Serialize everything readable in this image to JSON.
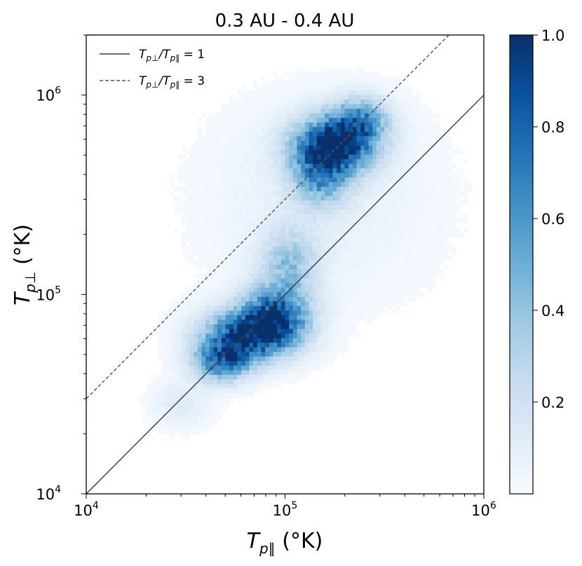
{
  "chart_data": {
    "type": "heatmap",
    "title": "0.3 AU - 0.4 AU",
    "xlabel": "T_p∥ (°K)",
    "ylabel": "T_p⊥ (°K)",
    "x_scale": "log",
    "y_scale": "log",
    "xlim": [
      10000,
      1000000
    ],
    "ylim": [
      10000,
      2000000
    ],
    "x_ticks": [
      {
        "value": 10000,
        "base": "10",
        "exp": "4"
      },
      {
        "value": 100000,
        "base": "10",
        "exp": "5"
      },
      {
        "value": 1000000,
        "base": "10",
        "exp": "6"
      }
    ],
    "y_ticks": [
      {
        "value": 10000,
        "base": "10",
        "exp": "4"
      },
      {
        "value": 100000,
        "base": "10",
        "exp": "5"
      },
      {
        "value": 1000000,
        "base": "10",
        "exp": "6"
      }
    ],
    "colormap": "Blues",
    "color_low": "#f7fbff",
    "color_high": "#08306b",
    "colorbar": {
      "min": 0.0,
      "max": 1.0,
      "ticks": [
        {
          "value": 0.2,
          "label": "0.2"
        },
        {
          "value": 0.4,
          "label": "0.4"
        },
        {
          "value": 0.6,
          "label": "0.6"
        },
        {
          "value": 0.8,
          "label": "0.8"
        },
        {
          "value": 1.0,
          "label": "1.0"
        }
      ]
    },
    "density_clusters": [
      {
        "center": [
          65000,
          62000
        ],
        "spread": [
          0.16,
          0.09
        ],
        "peak": 0.85
      },
      {
        "center": [
          90000,
          80000
        ],
        "spread": [
          0.12,
          0.1
        ],
        "peak": 0.7
      },
      {
        "center": [
          48000,
          46000
        ],
        "spread": [
          0.1,
          0.07
        ],
        "peak": 0.65
      },
      {
        "center": [
          105000,
          145000
        ],
        "spread": [
          0.1,
          0.12
        ],
        "peak": 0.35
      },
      {
        "center": [
          175000,
          560000
        ],
        "spread": [
          0.14,
          0.1
        ],
        "peak": 1.0
      },
      {
        "center": [
          150000,
          380000
        ],
        "spread": [
          0.1,
          0.1
        ],
        "peak": 0.45
      },
      {
        "center": [
          240000,
          750000
        ],
        "spread": [
          0.1,
          0.08
        ],
        "peak": 0.5
      },
      {
        "center": [
          30000,
          28000
        ],
        "spread": [
          0.1,
          0.08
        ],
        "peak": 0.12
      },
      {
        "center": [
          150000,
          300000
        ],
        "spread": [
          0.4,
          0.35
        ],
        "peak": 0.08
      }
    ],
    "series": [
      {
        "name": "T_p⊥/T_p∥ = 1",
        "ratio": 1,
        "color": "#3a3a3a",
        "style": "solid"
      },
      {
        "name": "T_p⊥/T_p∥ = 3",
        "ratio": 3,
        "color": "#555555",
        "style": "dashed"
      }
    ],
    "legend_position": "top-left",
    "grid": false
  }
}
